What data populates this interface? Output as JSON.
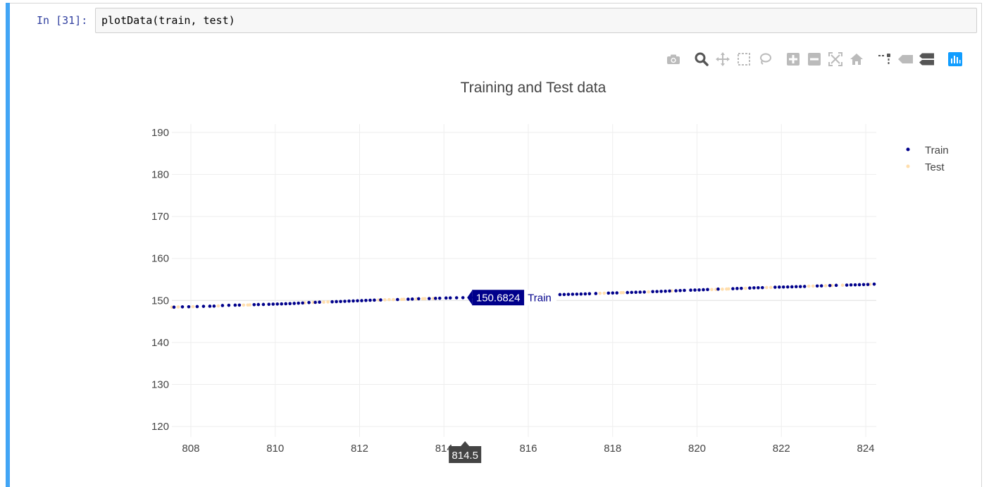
{
  "cell": {
    "prompt": "In [31]:",
    "code": "plotData(train, test)"
  },
  "modebar": {
    "icons": [
      "camera-icon",
      "zoom-icon",
      "pan-icon",
      "box-select-icon",
      "lasso-icon",
      "zoom-in-icon",
      "zoom-out-icon",
      "autoscale-icon",
      "home-icon",
      "spike-lines-icon",
      "hover-closest-icon",
      "hover-compare-icon",
      "plotly-logo-icon"
    ]
  },
  "chart_data": {
    "type": "scatter",
    "title": "Training and Test data",
    "xlabel": "",
    "ylabel": "",
    "xlim": [
      807.55,
      824.25
    ],
    "ylim": [
      117.5,
      192
    ],
    "xticks": [
      "808",
      "810",
      "812",
      "814",
      "816",
      "818",
      "820",
      "822",
      "824"
    ],
    "yticks": [
      "120",
      "130",
      "140",
      "150",
      "160",
      "170",
      "180",
      "190"
    ],
    "grid": true,
    "legend_position": "top-right",
    "series": [
      {
        "name": "Train",
        "color": "#00008b",
        "x": [
          807.6,
          807.8,
          807.95,
          808.15,
          808.3,
          808.45,
          808.55,
          808.75,
          808.9,
          809.05,
          809.15,
          809.5,
          809.6,
          809.72,
          809.85,
          809.95,
          810.05,
          810.15,
          810.25,
          810.35,
          810.45,
          810.55,
          810.65,
          810.8,
          810.95,
          811.05,
          811.35,
          811.45,
          811.55,
          811.65,
          811.75,
          811.85,
          811.95,
          812.05,
          812.15,
          812.25,
          812.35,
          812.5,
          812.9,
          813.15,
          813.25,
          813.4,
          813.65,
          813.8,
          813.9,
          814.05,
          814.15,
          814.3,
          814.45,
          814.6,
          814.7,
          816.75,
          816.85,
          816.95,
          817.05,
          817.15,
          817.25,
          817.35,
          817.45,
          817.6,
          817.9,
          818.0,
          818.1,
          818.35,
          818.45,
          818.55,
          818.65,
          818.75,
          818.95,
          819.05,
          819.15,
          819.25,
          819.35,
          819.5,
          819.6,
          819.7,
          819.85,
          819.95,
          820.05,
          820.15,
          820.25,
          820.5,
          820.85,
          820.95,
          821.05,
          821.25,
          821.35,
          821.45,
          821.55,
          821.85,
          821.95,
          822.05,
          822.15,
          822.25,
          822.35,
          822.45,
          822.55,
          822.85,
          822.95,
          823.15,
          823.3,
          823.55,
          823.65,
          823.75,
          823.85,
          823.95,
          824.05,
          824.2
        ],
        "y": [
          148.4,
          148.48,
          148.5,
          148.55,
          148.6,
          148.63,
          148.65,
          148.8,
          148.85,
          148.88,
          148.9,
          149.0,
          149.03,
          149.05,
          149.08,
          149.12,
          149.15,
          149.18,
          149.22,
          149.25,
          149.3,
          149.35,
          149.4,
          149.5,
          149.55,
          149.6,
          149.68,
          149.72,
          149.75,
          149.8,
          149.85,
          149.88,
          149.92,
          149.95,
          150.0,
          150.05,
          150.08,
          150.12,
          150.22,
          150.3,
          150.33,
          150.4,
          150.45,
          150.5,
          150.53,
          150.58,
          150.6,
          150.64,
          150.66,
          150.68,
          150.7,
          151.4,
          151.42,
          151.45,
          151.48,
          151.5,
          151.53,
          151.56,
          151.6,
          151.65,
          151.75,
          151.78,
          151.8,
          151.88,
          151.92,
          151.95,
          151.98,
          152.0,
          152.1,
          152.13,
          152.16,
          152.2,
          152.25,
          152.3,
          152.35,
          152.4,
          152.45,
          152.48,
          152.5,
          152.55,
          152.6,
          152.7,
          152.8,
          152.85,
          152.88,
          152.95,
          153.0,
          153.02,
          153.05,
          153.15,
          153.18,
          153.2,
          153.22,
          153.25,
          153.28,
          153.3,
          153.33,
          153.45,
          153.48,
          153.55,
          153.6,
          153.65,
          153.7,
          153.72,
          153.75,
          153.78,
          153.8,
          153.88
        ]
      },
      {
        "name": "Test",
        "color": "#ffdead",
        "x": [
          807.55,
          807.7,
          808.05,
          808.65,
          809.25,
          809.35,
          809.4,
          810.7,
          810.9,
          811.15,
          811.25,
          812.45,
          812.6,
          812.7,
          812.8,
          813.0,
          813.05,
          813.35,
          813.5,
          813.55,
          813.75,
          815.2,
          815.5,
          815.9,
          816.3,
          816.6,
          817.7,
          817.8,
          818.2,
          818.25,
          818.85,
          819.4,
          820.35,
          820.45,
          820.6,
          820.7,
          820.75,
          821.15,
          821.65,
          821.75,
          822.65,
          822.75,
          823.05,
          823.2,
          823.45,
          824.1
        ],
        "y": [
          148.4,
          148.45,
          148.52,
          148.7,
          148.9,
          148.92,
          148.95,
          149.45,
          149.53,
          149.6,
          149.65,
          150.1,
          150.15,
          150.2,
          150.2,
          150.25,
          150.28,
          150.35,
          150.4,
          150.42,
          150.48,
          150.9,
          151.0,
          151.1,
          151.25,
          151.35,
          151.7,
          151.72,
          151.85,
          151.86,
          152.05,
          152.28,
          152.6,
          152.62,
          152.68,
          152.72,
          152.75,
          152.9,
          153.08,
          153.1,
          153.4,
          153.42,
          153.5,
          153.55,
          153.62,
          153.85
        ]
      }
    ],
    "hover": {
      "value_label": "150.6824",
      "series_label": "Train",
      "x_value": 814.5,
      "y_value": 150.6824,
      "x_label": "814.5"
    }
  }
}
